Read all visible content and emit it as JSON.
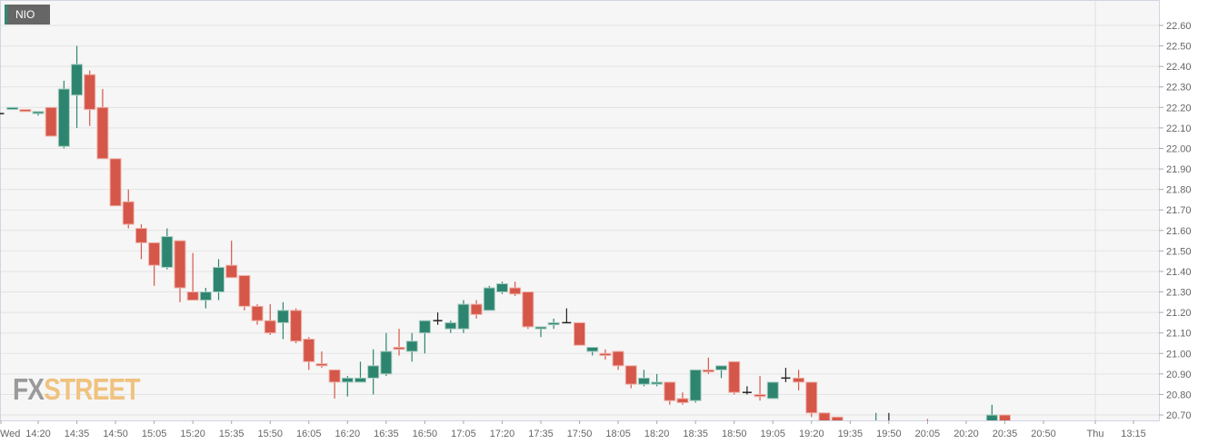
{
  "legend": {
    "symbol": "NIO",
    "marker_color": "#2e8b6e"
  },
  "watermark": {
    "part1": "FX",
    "part2": "STREET"
  },
  "colors": {
    "up": "#2e856f",
    "down": "#d5574a",
    "doji": "#222222",
    "background": "#f6f6f6",
    "grid": "#e3e3e3"
  },
  "chart_data": {
    "type": "candlestick",
    "title": "NIO",
    "interval_minutes": 5,
    "ylim": [
      20.67,
      22.63
    ],
    "y_ticks": [
      "20.70",
      "20.80",
      "20.90",
      "21.00",
      "21.10",
      "21.20",
      "21.30",
      "21.40",
      "21.50",
      "21.60",
      "21.70",
      "21.80",
      "21.90",
      "22.00",
      "22.10",
      "22.20",
      "22.30",
      "22.40",
      "22.50",
      "22.60"
    ],
    "x_ticks": [
      {
        "label": "Wed",
        "time": "14:05"
      },
      {
        "label": "14:20",
        "time": "14:20"
      },
      {
        "label": "14:35",
        "time": "14:35"
      },
      {
        "label": "14:50",
        "time": "14:50"
      },
      {
        "label": "15:05",
        "time": "15:05"
      },
      {
        "label": "15:20",
        "time": "15:20"
      },
      {
        "label": "15:35",
        "time": "15:35"
      },
      {
        "label": "15:50",
        "time": "15:50"
      },
      {
        "label": "16:05",
        "time": "16:05"
      },
      {
        "label": "16:20",
        "time": "16:20"
      },
      {
        "label": "16:35",
        "time": "16:35"
      },
      {
        "label": "16:50",
        "time": "16:50"
      },
      {
        "label": "17:05",
        "time": "17:05"
      },
      {
        "label": "17:20",
        "time": "17:20"
      },
      {
        "label": "17:35",
        "time": "17:35"
      },
      {
        "label": "17:50",
        "time": "17:50"
      },
      {
        "label": "18:05",
        "time": "18:05"
      },
      {
        "label": "18:20",
        "time": "18:20"
      },
      {
        "label": "18:35",
        "time": "18:35"
      },
      {
        "label": "18:50",
        "time": "18:50"
      },
      {
        "label": "19:05",
        "time": "19:05"
      },
      {
        "label": "19:20",
        "time": "19:20"
      },
      {
        "label": "19:35",
        "time": "19:35"
      },
      {
        "label": "19:50",
        "time": "19:50"
      },
      {
        "label": "20:05",
        "time": "20:05"
      },
      {
        "label": "20:20",
        "time": "20:20"
      },
      {
        "label": "20:35",
        "time": "20:35"
      },
      {
        "label": "20:50",
        "time": "20:50"
      },
      {
        "label": "Thu",
        "time": "21:10"
      },
      {
        "label": "13:15",
        "time": "21:25"
      }
    ],
    "candles": [
      {
        "t": "14:05",
        "o": 22.17,
        "h": 22.17,
        "l": 22.17,
        "c": 22.17
      },
      {
        "t": "14:10",
        "o": 22.19,
        "h": 22.2,
        "l": 22.19,
        "c": 22.2
      },
      {
        "t": "14:15",
        "o": 22.19,
        "h": 22.19,
        "l": 22.18,
        "c": 22.18
      },
      {
        "t": "14:20",
        "o": 22.17,
        "h": 22.18,
        "l": 22.16,
        "c": 22.18
      },
      {
        "t": "14:25",
        "o": 22.2,
        "h": 22.2,
        "l": 22.06,
        "c": 22.06
      },
      {
        "t": "14:30",
        "o": 22.01,
        "h": 22.33,
        "l": 22.0,
        "c": 22.29
      },
      {
        "t": "14:35",
        "o": 22.26,
        "h": 22.5,
        "l": 22.1,
        "c": 22.41
      },
      {
        "t": "14:40",
        "o": 22.36,
        "h": 22.38,
        "l": 22.11,
        "c": 22.19
      },
      {
        "t": "14:45",
        "o": 22.2,
        "h": 22.29,
        "l": 21.95,
        "c": 21.95
      },
      {
        "t": "14:50",
        "o": 21.95,
        "h": 21.95,
        "l": 21.72,
        "c": 21.72
      },
      {
        "t": "14:55",
        "o": 21.74,
        "h": 21.8,
        "l": 21.61,
        "c": 21.63
      },
      {
        "t": "15:00",
        "o": 21.61,
        "h": 21.63,
        "l": 21.46,
        "c": 21.54
      },
      {
        "t": "15:05",
        "o": 21.54,
        "h": 21.54,
        "l": 21.33,
        "c": 21.43
      },
      {
        "t": "15:10",
        "o": 21.42,
        "h": 21.61,
        "l": 21.41,
        "c": 21.57
      },
      {
        "t": "15:15",
        "o": 21.55,
        "h": 21.55,
        "l": 21.25,
        "c": 21.32
      },
      {
        "t": "15:20",
        "o": 21.3,
        "h": 21.49,
        "l": 21.26,
        "c": 21.26
      },
      {
        "t": "15:25",
        "o": 21.26,
        "h": 21.32,
        "l": 21.22,
        "c": 21.3
      },
      {
        "t": "15:30",
        "o": 21.3,
        "h": 21.46,
        "l": 21.26,
        "c": 21.42
      },
      {
        "t": "15:35",
        "o": 21.43,
        "h": 21.55,
        "l": 21.37,
        "c": 21.37
      },
      {
        "t": "15:40",
        "o": 21.38,
        "h": 21.38,
        "l": 21.21,
        "c": 21.23
      },
      {
        "t": "15:45",
        "o": 21.23,
        "h": 21.24,
        "l": 21.14,
        "c": 21.16
      },
      {
        "t": "15:50",
        "o": 21.16,
        "h": 21.24,
        "l": 21.09,
        "c": 21.1
      },
      {
        "t": "15:55",
        "o": 21.15,
        "h": 21.25,
        "l": 21.07,
        "c": 21.21
      },
      {
        "t": "16:00",
        "o": 21.21,
        "h": 21.22,
        "l": 21.05,
        "c": 21.06
      },
      {
        "t": "16:05",
        "o": 21.07,
        "h": 21.08,
        "l": 20.92,
        "c": 20.96
      },
      {
        "t": "16:10",
        "o": 20.95,
        "h": 21.01,
        "l": 20.93,
        "c": 20.94
      },
      {
        "t": "16:15",
        "o": 20.92,
        "h": 20.92,
        "l": 20.78,
        "c": 20.86
      },
      {
        "t": "16:20",
        "o": 20.86,
        "h": 20.89,
        "l": 20.79,
        "c": 20.88
      },
      {
        "t": "16:25",
        "o": 20.86,
        "h": 20.96,
        "l": 20.86,
        "c": 20.88
      },
      {
        "t": "16:30",
        "o": 20.88,
        "h": 21.02,
        "l": 20.8,
        "c": 20.94
      },
      {
        "t": "16:35",
        "o": 20.9,
        "h": 21.1,
        "l": 20.89,
        "c": 21.01
      },
      {
        "t": "16:40",
        "o": 21.03,
        "h": 21.12,
        "l": 20.99,
        "c": 21.02
      },
      {
        "t": "16:45",
        "o": 21.01,
        "h": 21.1,
        "l": 20.96,
        "c": 21.06
      },
      {
        "t": "16:50",
        "o": 21.1,
        "h": 21.16,
        "l": 21.0,
        "c": 21.16
      },
      {
        "t": "16:55",
        "o": 21.16,
        "h": 21.2,
        "l": 21.14,
        "c": 21.16
      },
      {
        "t": "17:00",
        "o": 21.12,
        "h": 21.16,
        "l": 21.1,
        "c": 21.15
      },
      {
        "t": "17:05",
        "o": 21.12,
        "h": 21.26,
        "l": 21.1,
        "c": 21.24
      },
      {
        "t": "17:10",
        "o": 21.24,
        "h": 21.26,
        "l": 21.17,
        "c": 21.19
      },
      {
        "t": "17:15",
        "o": 21.21,
        "h": 21.33,
        "l": 21.21,
        "c": 21.32
      },
      {
        "t": "17:20",
        "o": 21.3,
        "h": 21.35,
        "l": 21.29,
        "c": 21.34
      },
      {
        "t": "17:25",
        "o": 21.32,
        "h": 21.35,
        "l": 21.28,
        "c": 21.29
      },
      {
        "t": "17:30",
        "o": 21.3,
        "h": 21.3,
        "l": 21.12,
        "c": 21.13
      },
      {
        "t": "17:35",
        "o": 21.12,
        "h": 21.13,
        "l": 21.08,
        "c": 21.13
      },
      {
        "t": "17:40",
        "o": 21.14,
        "h": 21.17,
        "l": 21.12,
        "c": 21.15
      },
      {
        "t": "17:45",
        "o": 21.15,
        "h": 21.22,
        "l": 21.15,
        "c": 21.15
      },
      {
        "t": "17:50",
        "o": 21.15,
        "h": 21.15,
        "l": 21.04,
        "c": 21.04
      },
      {
        "t": "17:55",
        "o": 21.01,
        "h": 21.03,
        "l": 20.99,
        "c": 21.03
      },
      {
        "t": "18:00",
        "o": 21.0,
        "h": 21.02,
        "l": 20.97,
        "c": 20.99
      },
      {
        "t": "18:05",
        "o": 21.01,
        "h": 21.01,
        "l": 20.92,
        "c": 20.94
      },
      {
        "t": "18:10",
        "o": 20.94,
        "h": 20.94,
        "l": 20.83,
        "c": 20.85
      },
      {
        "t": "18:15",
        "o": 20.85,
        "h": 20.92,
        "l": 20.84,
        "c": 20.88
      },
      {
        "t": "18:20",
        "o": 20.85,
        "h": 20.9,
        "l": 20.84,
        "c": 20.86
      },
      {
        "t": "18:25",
        "o": 20.86,
        "h": 20.86,
        "l": 20.75,
        "c": 20.77
      },
      {
        "t": "18:30",
        "o": 20.78,
        "h": 20.81,
        "l": 20.75,
        "c": 20.76
      },
      {
        "t": "18:35",
        "o": 20.77,
        "h": 20.92,
        "l": 20.76,
        "c": 20.92
      },
      {
        "t": "18:40",
        "o": 20.92,
        "h": 20.98,
        "l": 20.9,
        "c": 20.91
      },
      {
        "t": "18:45",
        "o": 20.92,
        "h": 20.94,
        "l": 20.88,
        "c": 20.94
      },
      {
        "t": "18:50",
        "o": 20.96,
        "h": 20.96,
        "l": 20.8,
        "c": 20.81
      },
      {
        "t": "18:55",
        "o": 20.81,
        "h": 20.84,
        "l": 20.8,
        "c": 20.81
      },
      {
        "t": "19:00",
        "o": 20.8,
        "h": 20.89,
        "l": 20.77,
        "c": 20.79
      },
      {
        "t": "19:05",
        "o": 20.78,
        "h": 20.86,
        "l": 20.78,
        "c": 20.86
      },
      {
        "t": "19:10",
        "o": 20.88,
        "h": 20.93,
        "l": 20.86,
        "c": 20.88
      },
      {
        "t": "19:15",
        "o": 20.88,
        "h": 20.92,
        "l": 20.82,
        "c": 20.86
      },
      {
        "t": "19:20",
        "o": 20.86,
        "h": 20.86,
        "l": 20.69,
        "c": 20.71
      },
      {
        "t": "19:25",
        "o": 20.71,
        "h": 20.71,
        "l": 20.64,
        "c": 20.65
      },
      {
        "t": "19:30",
        "o": 20.69,
        "h": 20.69,
        "l": 20.64,
        "c": 20.65
      },
      {
        "t": "19:45",
        "o": 20.65,
        "h": 20.71,
        "l": 20.64,
        "c": 20.66
      },
      {
        "t": "19:50",
        "o": 20.66,
        "h": 20.71,
        "l": 20.64,
        "c": 20.66
      },
      {
        "t": "20:05",
        "o": 20.66,
        "h": 20.68,
        "l": 20.64,
        "c": 20.65
      },
      {
        "t": "20:25",
        "o": 20.65,
        "h": 20.67,
        "l": 20.64,
        "c": 20.66
      },
      {
        "t": "20:30",
        "o": 20.66,
        "h": 20.75,
        "l": 20.65,
        "c": 20.7
      },
      {
        "t": "20:35",
        "o": 20.7,
        "h": 20.7,
        "l": 20.64,
        "c": 20.65
      }
    ]
  }
}
